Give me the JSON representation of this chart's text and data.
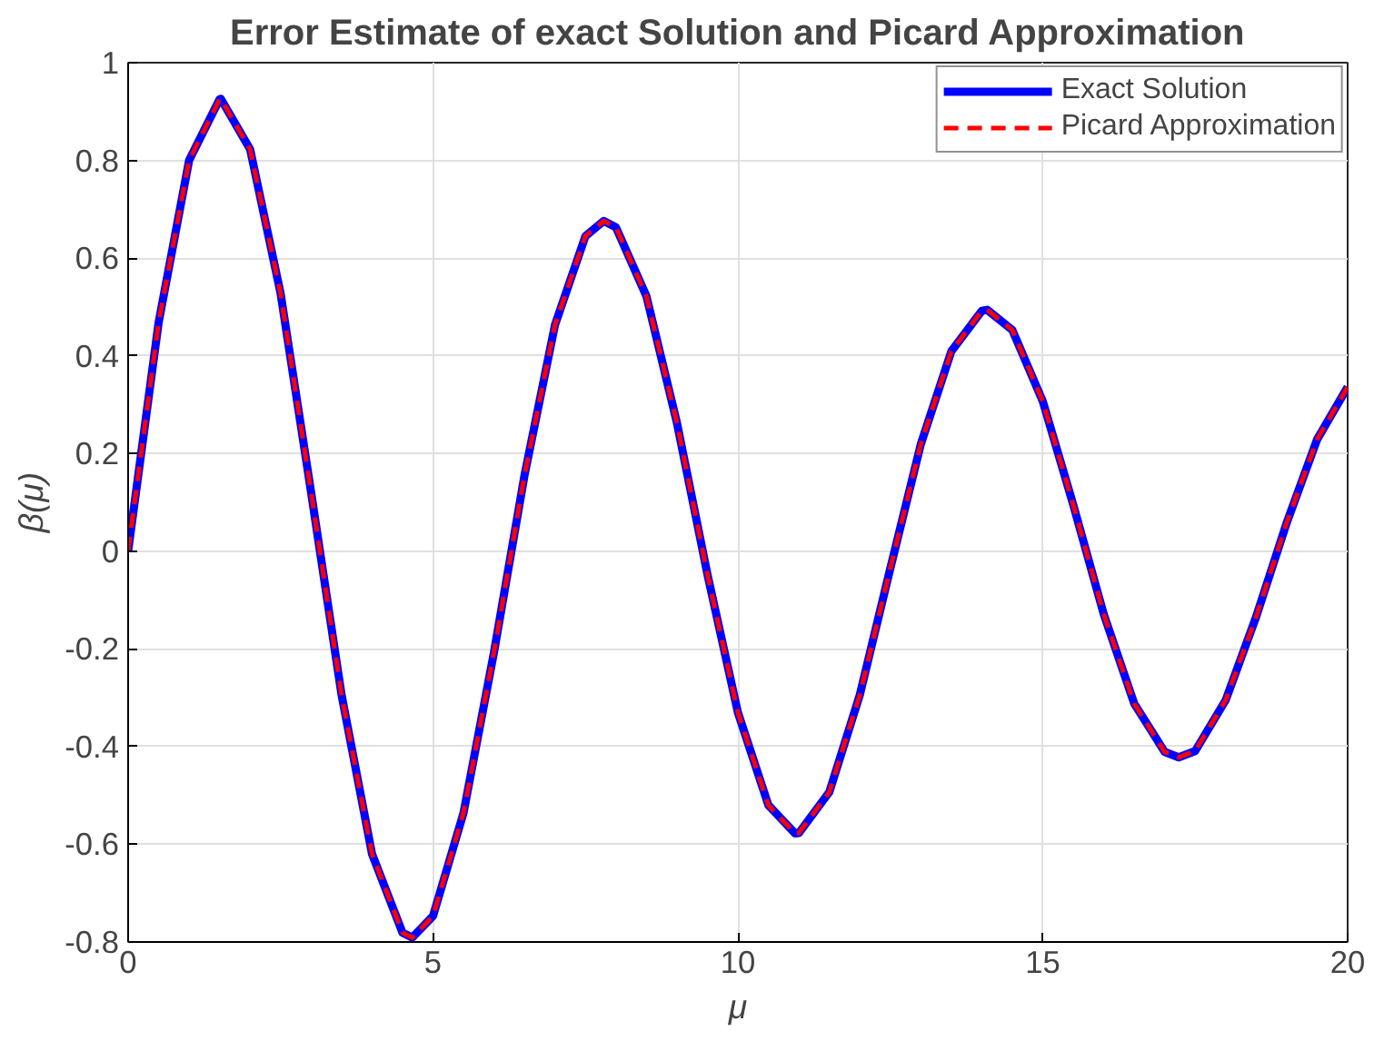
{
  "chart_data": {
    "type": "line",
    "title": "Error Estimate of exact Solution and Picard Approximation",
    "xlabel": "μ",
    "ylabel": "β(μ)",
    "x": [
      0,
      0.5,
      1,
      1.5,
      1.52,
      2,
      2.5,
      3,
      3.5,
      4,
      4.5,
      4.66,
      5,
      5.5,
      6,
      6.5,
      7,
      7.5,
      7.8,
      8,
      8.5,
      9,
      9.5,
      10,
      10.5,
      10.94,
      11,
      11.5,
      12,
      12.5,
      13,
      13.5,
      14,
      14.09,
      14.5,
      15,
      15.5,
      16,
      16.5,
      17,
      17.23,
      17.5,
      18,
      18.5,
      19,
      19.5,
      20
    ],
    "series": [
      {
        "name": "Exact Solution",
        "color": "#0000ff",
        "line_style": "solid",
        "values": [
          0,
          0.468,
          0.8,
          0.925,
          0.926,
          0.823,
          0.528,
          0.121,
          -0.294,
          -0.62,
          -0.781,
          -0.791,
          -0.747,
          -0.536,
          -0.207,
          0.155,
          0.463,
          0.645,
          0.676,
          0.663,
          0.522,
          0.263,
          -0.047,
          -0.33,
          -0.52,
          -0.578,
          -0.577,
          -0.493,
          -0.294,
          -0.035,
          0.219,
          0.409,
          0.492,
          0.494,
          0.453,
          0.307,
          0.095,
          -0.129,
          -0.312,
          -0.411,
          -0.422,
          -0.409,
          -0.305,
          -0.134,
          0.058,
          0.229,
          0.336
        ]
      },
      {
        "name": "Picard Approximation",
        "color": "#ff0000",
        "line_style": "dashed",
        "values": [
          0,
          0.468,
          0.8,
          0.925,
          0.926,
          0.823,
          0.528,
          0.121,
          -0.294,
          -0.62,
          -0.781,
          -0.791,
          -0.747,
          -0.536,
          -0.207,
          0.155,
          0.463,
          0.645,
          0.676,
          0.663,
          0.522,
          0.263,
          -0.047,
          -0.33,
          -0.52,
          -0.578,
          -0.577,
          -0.493,
          -0.294,
          -0.035,
          0.219,
          0.409,
          0.492,
          0.494,
          0.453,
          0.307,
          0.095,
          -0.129,
          -0.312,
          -0.411,
          -0.422,
          -0.409,
          -0.305,
          -0.134,
          0.058,
          0.229,
          0.336
        ]
      }
    ],
    "xlim": [
      0,
      20
    ],
    "ylim": [
      -0.8,
      1
    ],
    "xticks": [
      0,
      5,
      10,
      15,
      20
    ],
    "yticks": [
      -0.8,
      -0.6,
      -0.4,
      -0.2,
      0,
      0.2,
      0.4,
      0.6,
      0.8,
      1
    ],
    "grid": true,
    "legend": "top right"
  }
}
